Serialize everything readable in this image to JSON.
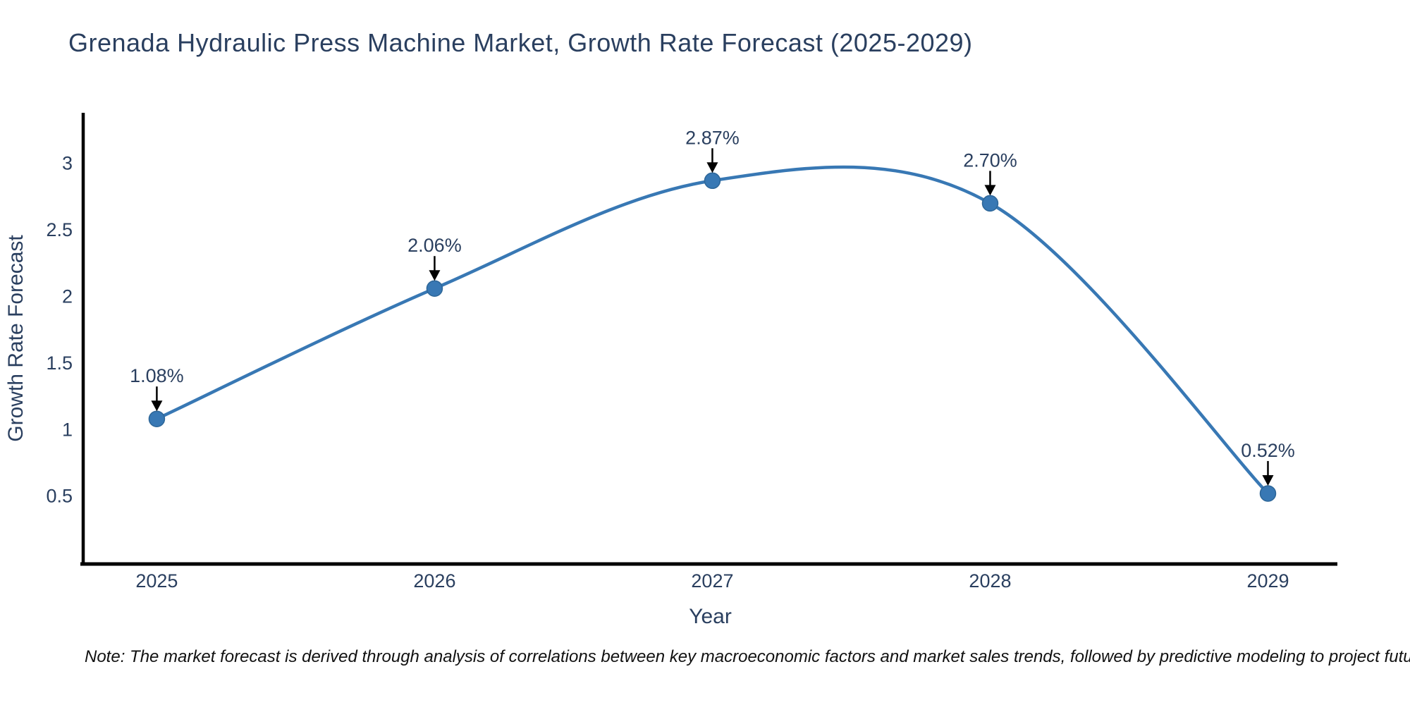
{
  "chart_data": {
    "type": "line",
    "line_shape": "spline",
    "title": "Grenada Hydraulic Press Machine Market, Growth Rate Forecast (2025-2029)",
    "xlabel": "Year",
    "ylabel": "Growth Rate Forecast",
    "categories": [
      2025,
      2026,
      2027,
      2028,
      2029
    ],
    "series": [
      {
        "name": "Growth Rate Forecast",
        "values": [
          1.08,
          2.06,
          2.87,
          2.7,
          0.52
        ],
        "point_labels": [
          "1.08%",
          "2.06%",
          "2.87%",
          "2.70%",
          "0.52%"
        ]
      }
    ],
    "yticks": [
      0.5,
      1,
      1.5,
      2,
      2.5,
      3
    ],
    "xticks": [
      2025,
      2026,
      2027,
      2028,
      2029
    ],
    "xlim": [
      2024.735,
      2029.25
    ],
    "ylim": [
      -0.01,
      3.38
    ],
    "grid": false,
    "legend": "none",
    "colors": {
      "line": "#3878b4",
      "marker": "#3878b4",
      "marker_edge": "#2d6698",
      "axis": "#000000",
      "tick_text": "#2a3f5f",
      "annotation_text": "#2a3f5f",
      "annotation_arrow": "#000000",
      "title_text": "#2a3f5f",
      "background": "#ffffff"
    },
    "note": "Note: The market forecast is derived through analysis of correlations between key macroeconomic factors and market sales trends, followed by predictive modeling to project future sales"
  }
}
